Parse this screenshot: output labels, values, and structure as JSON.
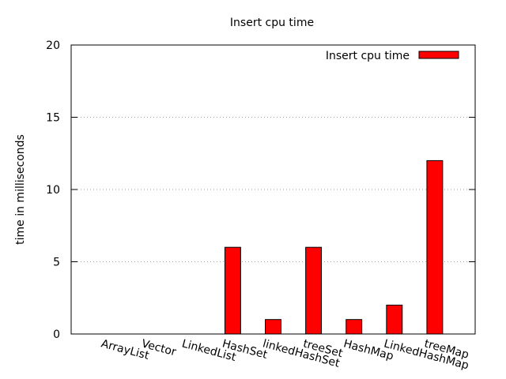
{
  "chart_data": {
    "type": "bar",
    "title": "Insert cpu time",
    "xlabel": "",
    "ylabel": "time in milliseconds",
    "ylim": [
      0,
      20
    ],
    "yticks": [
      0,
      5,
      10,
      15,
      20
    ],
    "categories": [
      "ArrayList",
      "Vector",
      "LinkedList",
      "HashSet",
      "linkedHashSet",
      "treeSet",
      "HashMap",
      "LinkedHashMap",
      "treeMap"
    ],
    "series": [
      {
        "name": "Insert cpu time",
        "color": "#ff0000",
        "values": [
          0,
          0,
          0,
          6,
          1,
          6,
          1,
          2,
          12
        ]
      }
    ],
    "grid": "horizontal-dotted",
    "legend_position": "top-right",
    "xtick_rotation": "slanted"
  }
}
